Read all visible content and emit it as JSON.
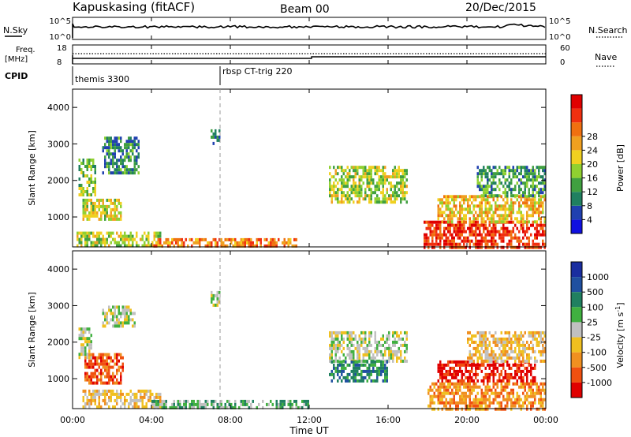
{
  "header": {
    "station": "Kapuskasing (fitACF)",
    "beam": "Beam 00",
    "date": "20/Dec/2015"
  },
  "top_panels": {
    "nsky_label": "N.Sky",
    "nsky_ticks": [
      "10^5",
      "10^0"
    ],
    "nsearch_label": "N.Search",
    "nsearch_ticks": [
      "10^5",
      "10^0"
    ],
    "freq_label": "Freq.",
    "freq_unit": "[MHz]",
    "freq_ticks": [
      "18",
      "8"
    ],
    "nave_label": "Nave",
    "nave_ticks": [
      "60",
      "0"
    ],
    "cpid_label": "CPID",
    "cpid_entries": [
      {
        "label": "themis 3300",
        "start_hour": 0
      },
      {
        "label": "rbsp CT-trig 220",
        "start_hour": 7.5
      }
    ]
  },
  "x_axis": {
    "label": "Time UT",
    "ticks": [
      "00:00",
      "04:00",
      "08:00",
      "12:00",
      "16:00",
      "20:00",
      "00:00"
    ],
    "range_hours": [
      0,
      24
    ]
  },
  "chart_data": [
    {
      "type": "heatmap",
      "panel": "power",
      "ylabel": "Slant Range [km]",
      "yticks": [
        1000,
        2000,
        3000,
        4000
      ],
      "ylim": [
        180,
        4500
      ],
      "colorbar_label": "Power [dB]",
      "colorbar_ticks": [
        "4",
        "8",
        "12",
        "16",
        "20",
        "24",
        "28"
      ],
      "colorbar_range": [
        0,
        30
      ],
      "colors": [
        "#1010e0",
        "#2040b0",
        "#208060",
        "#40a040",
        "#90d030",
        "#f0d020",
        "#f0a020",
        "#f07010",
        "#f03010",
        "#e00000"
      ],
      "regions": [
        {
          "t": [
            0.2,
            4.5
          ],
          "r": [
            200,
            600
          ],
          "level": 14
        },
        {
          "t": [
            1.5,
            3.4
          ],
          "r": [
            2200,
            3200
          ],
          "level": 8
        },
        {
          "t": [
            0.3,
            1.2
          ],
          "r": [
            1600,
            2600
          ],
          "level": 13
        },
        {
          "t": [
            0.5,
            2.5
          ],
          "r": [
            900,
            1500
          ],
          "level": 16
        },
        {
          "t": [
            4.0,
            11.5
          ],
          "r": [
            200,
            420
          ],
          "level": 22
        },
        {
          "t": [
            7.0,
            7.5
          ],
          "r": [
            3000,
            3400
          ],
          "level": 8
        },
        {
          "t": [
            13.0,
            17.0
          ],
          "r": [
            1400,
            2400
          ],
          "level": 14
        },
        {
          "t": [
            17.8,
            24.0
          ],
          "r": [
            200,
            900
          ],
          "level": 26
        },
        {
          "t": [
            18.5,
            24.0
          ],
          "r": [
            900,
            1600
          ],
          "level": 18
        },
        {
          "t": [
            20.5,
            24.0
          ],
          "r": [
            1600,
            2400
          ],
          "level": 10
        }
      ]
    },
    {
      "type": "heatmap",
      "panel": "velocity",
      "ylabel": "Slant Range [km]",
      "yticks": [
        1000,
        2000,
        3000,
        4000
      ],
      "ylim": [
        180,
        4500
      ],
      "colorbar_label": "Velocity [m s^-1]",
      "colorbar_ticks": [
        "1000",
        "500",
        "100",
        "25",
        "-25",
        "-100",
        "-500",
        "-1000"
      ],
      "colors": [
        "#1a2ea0",
        "#2050a0",
        "#208060",
        "#40b040",
        "#c0c0c0",
        "#f0c020",
        "#f09020",
        "#f05010",
        "#e00000"
      ],
      "regions": [
        {
          "t": [
            0.3,
            1.0
          ],
          "r": [
            1600,
            2400
          ],
          "level": 4
        },
        {
          "t": [
            0.6,
            2.6
          ],
          "r": [
            900,
            1700
          ],
          "level": 7
        },
        {
          "t": [
            1.5,
            3.2
          ],
          "r": [
            2400,
            3000
          ],
          "level": 4
        },
        {
          "t": [
            0.5,
            4.5
          ],
          "r": [
            200,
            700
          ],
          "level": 5
        },
        {
          "t": [
            4.0,
            12.0
          ],
          "r": [
            200,
            420
          ],
          "level": 3
        },
        {
          "t": [
            7.0,
            7.5
          ],
          "r": [
            3000,
            3400
          ],
          "level": 4
        },
        {
          "t": [
            13.0,
            17.0
          ],
          "r": [
            1500,
            2300
          ],
          "level": 4
        },
        {
          "t": [
            13.0,
            16.0
          ],
          "r": [
            900,
            1500
          ],
          "level": 2
        },
        {
          "t": [
            18.0,
            24.0
          ],
          "r": [
            200,
            900
          ],
          "level": 6
        },
        {
          "t": [
            18.5,
            23.5
          ],
          "r": [
            900,
            1500
          ],
          "level": 8
        },
        {
          "t": [
            20.0,
            24.0
          ],
          "r": [
            1500,
            2300
          ],
          "level": 5
        }
      ]
    }
  ]
}
